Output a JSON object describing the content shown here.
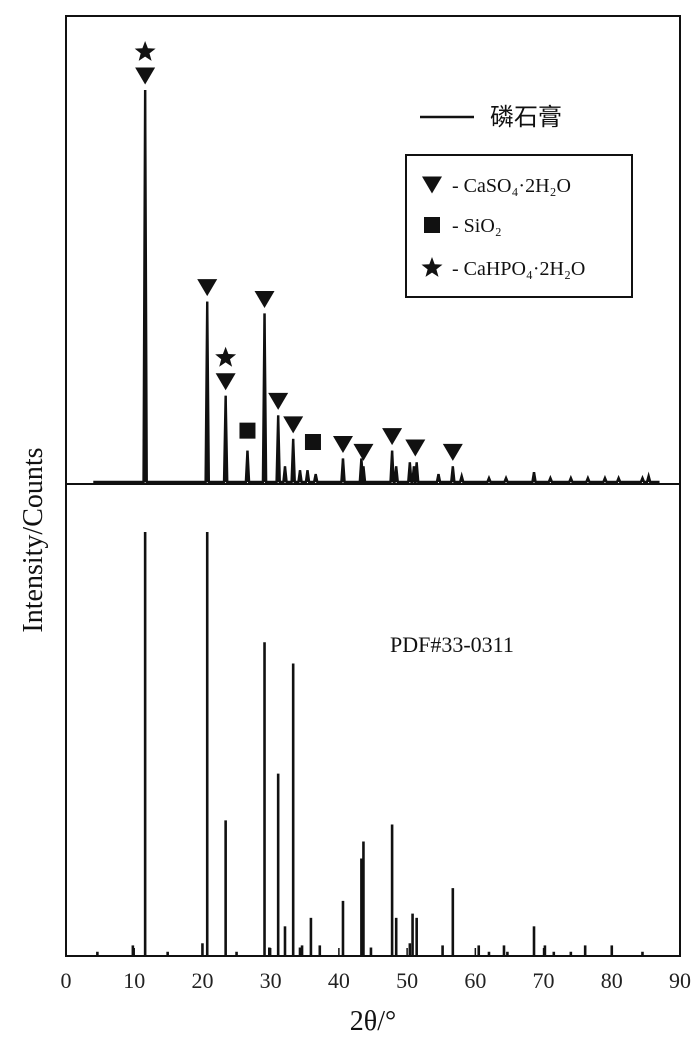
{
  "chart_data": {
    "type": "bar",
    "xlabel": "2θ/°",
    "ylabel": "Intensity/Counts",
    "xlim": [
      0,
      90
    ],
    "x_ticks": [
      "0",
      "10",
      "20",
      "30",
      "40",
      "50",
      "60",
      "70",
      "80",
      "90"
    ],
    "grid": false,
    "line_series_label": "磷石膏",
    "reference_label": "PDF#33-0311",
    "legend": {
      "placement": "top-right",
      "items": [
        {
          "symbol": "down-triangle",
          "label": "- CaSO₄·2H₂O"
        },
        {
          "symbol": "square",
          "label": "- SiO₂"
        },
        {
          "symbol": "star",
          "label": "- CaHPO₄·2H₂O"
        }
      ]
    },
    "series": [
      {
        "name": "磷石膏",
        "style": "line",
        "values_are_relative": true,
        "peaks": [
          {
            "x": 11.6,
            "y": 100
          },
          {
            "x": 20.7,
            "y": 46
          },
          {
            "x": 23.4,
            "y": 22
          },
          {
            "x": 26.6,
            "y": 8
          },
          {
            "x": 29.1,
            "y": 43
          },
          {
            "x": 31.1,
            "y": 17
          },
          {
            "x": 32.1,
            "y": 4
          },
          {
            "x": 33.3,
            "y": 11
          },
          {
            "x": 34.3,
            "y": 3
          },
          {
            "x": 35.4,
            "y": 3
          },
          {
            "x": 36.6,
            "y": 2
          },
          {
            "x": 40.6,
            "y": 6
          },
          {
            "x": 43.3,
            "y": 6
          },
          {
            "x": 43.6,
            "y": 4
          },
          {
            "x": 47.8,
            "y": 8
          },
          {
            "x": 48.4,
            "y": 4
          },
          {
            "x": 50.4,
            "y": 5
          },
          {
            "x": 51.0,
            "y": 4
          },
          {
            "x": 51.4,
            "y": 5
          },
          {
            "x": 54.6,
            "y": 2
          },
          {
            "x": 56.7,
            "y": 4
          },
          {
            "x": 58.0,
            "y": 1.5
          },
          {
            "x": 62.0,
            "y": 1
          },
          {
            "x": 64.5,
            "y": 1
          },
          {
            "x": 68.6,
            "y": 2.5
          },
          {
            "x": 71.0,
            "y": 1
          },
          {
            "x": 74.0,
            "y": 1
          },
          {
            "x": 76.5,
            "y": 1
          },
          {
            "x": 79.0,
            "y": 1
          },
          {
            "x": 81.0,
            "y": 1
          },
          {
            "x": 84.5,
            "y": 1
          },
          {
            "x": 85.4,
            "y": 1.5
          }
        ],
        "markers": [
          {
            "x": 11.6,
            "symbols": [
              "down-triangle",
              "star"
            ]
          },
          {
            "x": 20.7,
            "symbols": [
              "down-triangle"
            ]
          },
          {
            "x": 23.4,
            "symbols": [
              "down-triangle",
              "star"
            ]
          },
          {
            "x": 26.6,
            "symbols": [
              "square"
            ]
          },
          {
            "x": 29.1,
            "symbols": [
              "down-triangle"
            ]
          },
          {
            "x": 31.1,
            "symbols": [
              "down-triangle"
            ]
          },
          {
            "x": 33.3,
            "symbols": [
              "down-triangle"
            ]
          },
          {
            "x": 36.2,
            "symbols": [
              "square"
            ]
          },
          {
            "x": 40.6,
            "symbols": [
              "down-triangle"
            ]
          },
          {
            "x": 43.6,
            "symbols": [
              "down-triangle"
            ]
          },
          {
            "x": 47.8,
            "symbols": [
              "down-triangle"
            ]
          },
          {
            "x": 51.2,
            "symbols": [
              "down-triangle"
            ]
          },
          {
            "x": 56.7,
            "symbols": [
              "down-triangle"
            ]
          }
        ]
      },
      {
        "name": "PDF#33-0311",
        "style": "stick",
        "values_are_relative": true,
        "peaks": [
          {
            "x": 4.6,
            "y": 1
          },
          {
            "x": 9.8,
            "y": 2.5
          },
          {
            "x": 11.6,
            "y": 100
          },
          {
            "x": 14.9,
            "y": 1
          },
          {
            "x": 20.0,
            "y": 3
          },
          {
            "x": 20.7,
            "y": 100
          },
          {
            "x": 23.4,
            "y": 32
          },
          {
            "x": 25.0,
            "y": 1
          },
          {
            "x": 29.1,
            "y": 74
          },
          {
            "x": 29.8,
            "y": 2
          },
          {
            "x": 31.1,
            "y": 43
          },
          {
            "x": 32.1,
            "y": 7
          },
          {
            "x": 33.3,
            "y": 69
          },
          {
            "x": 34.3,
            "y": 2
          },
          {
            "x": 34.6,
            "y": 2.5
          },
          {
            "x": 35.9,
            "y": 9
          },
          {
            "x": 37.2,
            "y": 2.5
          },
          {
            "x": 40.6,
            "y": 13
          },
          {
            "x": 43.3,
            "y": 23
          },
          {
            "x": 43.6,
            "y": 27
          },
          {
            "x": 44.7,
            "y": 2
          },
          {
            "x": 47.8,
            "y": 31
          },
          {
            "x": 48.4,
            "y": 9
          },
          {
            "x": 50.4,
            "y": 3
          },
          {
            "x": 50.8,
            "y": 10
          },
          {
            "x": 51.4,
            "y": 9
          },
          {
            "x": 55.2,
            "y": 2.5
          },
          {
            "x": 56.7,
            "y": 16
          },
          {
            "x": 60.5,
            "y": 2.5
          },
          {
            "x": 62.0,
            "y": 1
          },
          {
            "x": 64.2,
            "y": 2.5
          },
          {
            "x": 64.7,
            "y": 1
          },
          {
            "x": 68.6,
            "y": 7
          },
          {
            "x": 70.2,
            "y": 2.5
          },
          {
            "x": 71.5,
            "y": 1
          },
          {
            "x": 74.0,
            "y": 1
          },
          {
            "x": 76.1,
            "y": 2.5
          },
          {
            "x": 80.0,
            "y": 2.5
          },
          {
            "x": 84.5,
            "y": 1
          }
        ]
      }
    ]
  }
}
